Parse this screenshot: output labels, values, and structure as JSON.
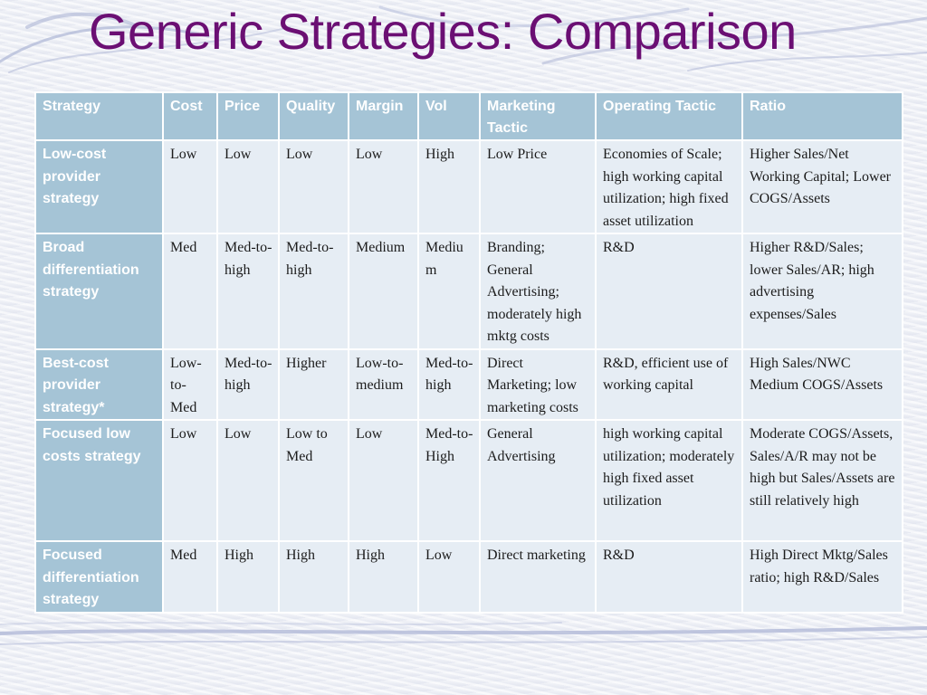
{
  "slide": {
    "title": "Generic Strategies: Comparison"
  },
  "table": {
    "headers": [
      "Strategy",
      "Cost",
      "Price",
      "Quality",
      "Margin",
      "Vol",
      "Marketing Tactic",
      "Operating Tactic",
      "Ratio"
    ],
    "rows": [
      {
        "strategy": "Low-cost provider strategy",
        "cost": "Low",
        "price": "Low",
        "quality": "Low",
        "margin": "Low",
        "vol": "High",
        "marketing": "Low Price",
        "operating": "Economies of Scale; high working capital utilization; high fixed asset utilization",
        "ratio": "Higher Sales/Net Working Capital; Lower COGS/Assets"
      },
      {
        "strategy": "Broad differentiation strategy",
        "cost": "Med",
        "price": "Med-to-high",
        "quality": "Med-to-high",
        "margin": "Medium",
        "vol": "Medium",
        "marketing": "Branding; General Advertising; moderately high mktg costs",
        "operating": "R&D",
        "ratio": "Higher R&D/Sales; lower Sales/AR; high advertising expenses/Sales"
      },
      {
        "strategy": "Best-cost provider strategy*",
        "cost": "Low-to-Med",
        "price": "Med-to-high",
        "quality": "Higher",
        "margin": "Low-to-medium",
        "vol": "Med-to-high",
        "marketing": "Direct Marketing; low marketing costs",
        "operating": "R&D, efficient use of working capital",
        "ratio": "High Sales/NWC Medium COGS/Assets"
      },
      {
        "strategy": "Focused low costs strategy",
        "cost": "Low",
        "price": "Low",
        "quality": "Low to Med",
        "margin": "Low",
        "vol": "Med-to-High",
        "marketing": "General Advertising",
        "operating": "high working capital utilization; moderately high fixed asset utilization",
        "ratio": "Moderate COGS/Assets, Sales/A/R may not be high but Sales/Assets are still relatively high"
      },
      {
        "strategy": "Focused differentiation strategy",
        "cost": "Med",
        "price": "High",
        "quality": "High",
        "margin": "High",
        "vol": "Low",
        "marketing": "Direct marketing",
        "operating": "R&D",
        "ratio": "High Direct Mktg/Sales ratio; high R&D/Sales"
      }
    ]
  }
}
